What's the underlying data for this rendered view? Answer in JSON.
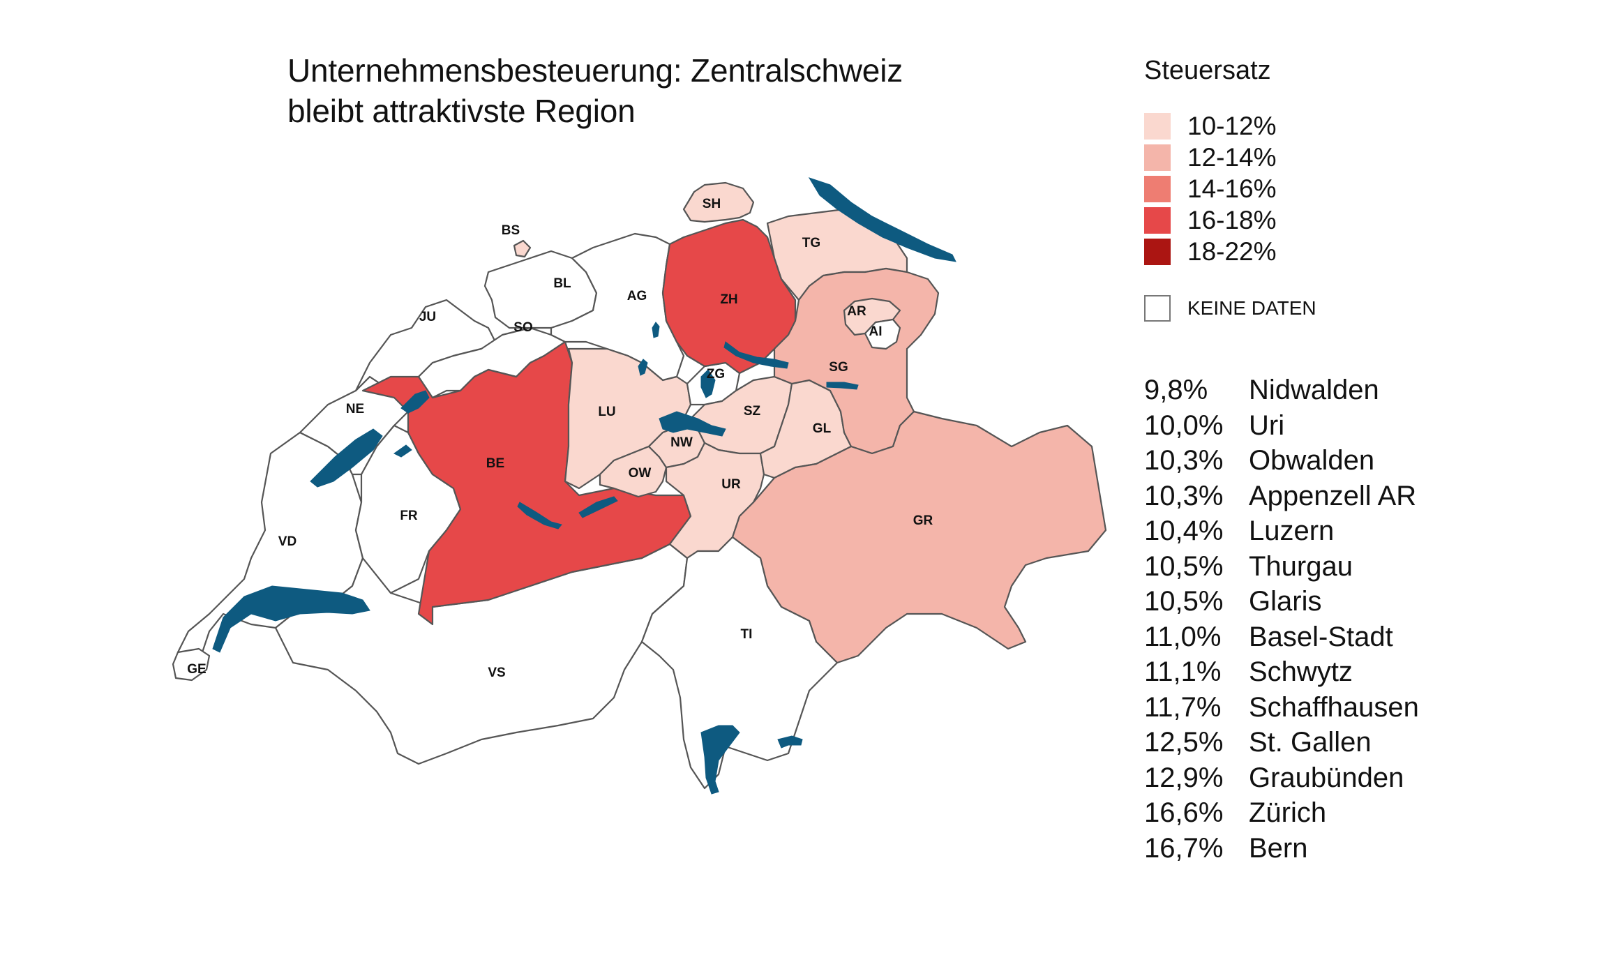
{
  "title": {
    "line1": "Unternehmensbesteuerung: Zentralschweiz",
    "line2": "bleibt attraktivste Region"
  },
  "legend": {
    "title": "Steuersatz",
    "classes": [
      {
        "label": "10-12%",
        "color": "#fad8cf"
      },
      {
        "label": "12-14%",
        "color": "#f4b5aa"
      },
      {
        "label": "14-16%",
        "color": "#ee7d72"
      },
      {
        "label": "16-18%",
        "color": "#e64849"
      },
      {
        "label": "18-22%",
        "color": "#ab1512"
      }
    ],
    "no_data": {
      "label": "KEINE DATEN",
      "color": "#ffffff"
    }
  },
  "lake_color": "#0e5a80",
  "ranking": [
    {
      "value": "9,8%",
      "name": "Nidwalden"
    },
    {
      "value": "10,0%",
      "name": "Uri"
    },
    {
      "value": "10,3%",
      "name": "Obwalden"
    },
    {
      "value": "10,3%",
      "name": "Appenzell AR"
    },
    {
      "value": "10,4%",
      "name": "Luzern"
    },
    {
      "value": "10,5%",
      "name": "Thurgau"
    },
    {
      "value": "10,5%",
      "name": "Glaris"
    },
    {
      "value": "11,0%",
      "name": "Basel-Stadt"
    },
    {
      "value": "11,1%",
      "name": "Schwytz"
    },
    {
      "value": "11,7%",
      "name": "Schaffhausen"
    },
    {
      "value": "12,5%",
      "name": "St. Gallen"
    },
    {
      "value": "12,9%",
      "name": "Graubünden"
    },
    {
      "value": "16,6%",
      "name": "Zürich"
    },
    {
      "value": "16,7%",
      "name": "Bern"
    }
  ],
  "cantons": {
    "GE": {
      "label": "GE",
      "class": -1
    },
    "VD": {
      "label": "VD",
      "class": -1
    },
    "VS": {
      "label": "VS",
      "class": -1
    },
    "NE": {
      "label": "NE",
      "class": -1
    },
    "FR": {
      "label": "FR",
      "class": -1
    },
    "JU": {
      "label": "JU",
      "class": -1
    },
    "SO": {
      "label": "SO",
      "class": -1
    },
    "BL": {
      "label": "BL",
      "class": -1
    },
    "BS": {
      "label": "BS",
      "class": 0
    },
    "AG": {
      "label": "AG",
      "class": -1
    },
    "BE": {
      "label": "BE",
      "class": 3
    },
    "LU": {
      "label": "LU",
      "class": 0
    },
    "OW": {
      "label": "OW",
      "class": 0
    },
    "NW": {
      "label": "NW",
      "class": 0
    },
    "ZG": {
      "label": "ZG",
      "class": -1
    },
    "SZ": {
      "label": "SZ",
      "class": 0
    },
    "UR": {
      "label": "UR",
      "class": 0
    },
    "GL": {
      "label": "GL",
      "class": 0
    },
    "ZH": {
      "label": "ZH",
      "class": 3
    },
    "SH": {
      "label": "SH",
      "class": 0
    },
    "TG": {
      "label": "TG",
      "class": 0
    },
    "SG": {
      "label": "SG",
      "class": 1
    },
    "AR": {
      "label": "AR",
      "class": 0
    },
    "AI": {
      "label": "AI",
      "class": -1
    },
    "GR": {
      "label": "GR",
      "class": 1
    },
    "TI": {
      "label": "TI",
      "class": -1
    }
  }
}
